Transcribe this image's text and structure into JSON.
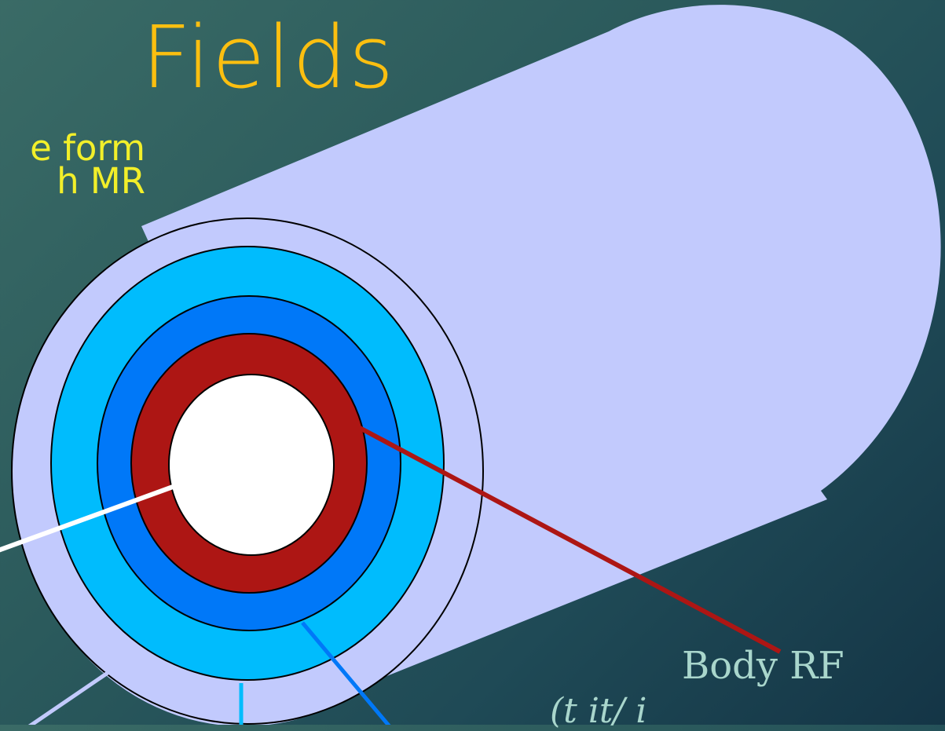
{
  "slide": {
    "title": "Fields",
    "subtitle_fragment": "e form\nh MR",
    "body_rf_label": "Body RF",
    "body_rf_sublabel_fragment": "(t      it/     i"
  },
  "colors": {
    "title": "#fcbf10",
    "subtitle": "#f2ef2a",
    "cylinder": "#c2cafd",
    "outer_ring_light_blue": "#00bcfd",
    "middle_ring_blue": "#0078f8",
    "inner_ring_red": "#ad1614",
    "bore": "#ffffff",
    "body_rf_label": "#a9d6cc"
  }
}
